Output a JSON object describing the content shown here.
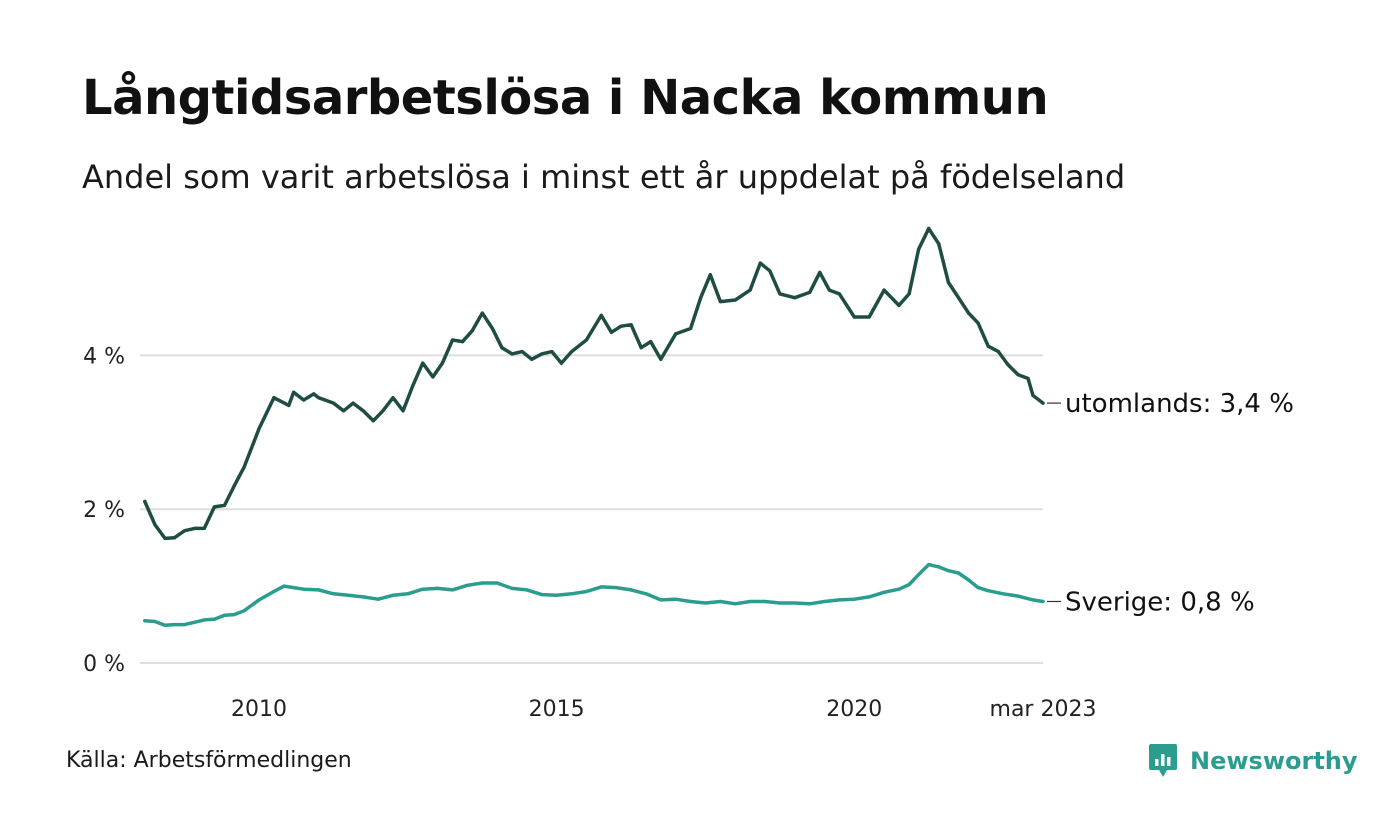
{
  "title": "Långtidsarbetslösa i Nacka kommun",
  "subtitle": "Andel som varit arbetslösa i minst ett år uppdelat på födelseland",
  "source": "Källa: Arbetsförmedlingen",
  "brand": {
    "name": "Newsworthy",
    "icon": "newsworthy-logo-icon",
    "color": "#2a9d8f"
  },
  "chart_data": {
    "type": "line",
    "xlim": [
      2008.0,
      2023.17
    ],
    "ylim": [
      0,
      5.8
    ],
    "y_ticks": [
      {
        "value": 0,
        "label": "0 %"
      },
      {
        "value": 2,
        "label": "2 %"
      },
      {
        "value": 4,
        "label": "4 %"
      }
    ],
    "x_ticks": [
      {
        "value": 2010.0,
        "label": "2010"
      },
      {
        "value": 2015.0,
        "label": "2015"
      },
      {
        "value": 2020.0,
        "label": "2020"
      },
      {
        "value": 2023.17,
        "label": "mar 2023"
      }
    ],
    "grid": true,
    "legend": "end-labels",
    "series": [
      {
        "name": "utomlands",
        "end_label": "utomlands: 3,4 %",
        "color": "#1f4d43",
        "points": [
          [
            2008.08,
            2.1
          ],
          [
            2008.25,
            1.8
          ],
          [
            2008.42,
            1.62
          ],
          [
            2008.58,
            1.63
          ],
          [
            2008.75,
            1.72
          ],
          [
            2008.92,
            1.75
          ],
          [
            2009.08,
            1.75
          ],
          [
            2009.25,
            2.03
          ],
          [
            2009.42,
            2.05
          ],
          [
            2009.58,
            2.3
          ],
          [
            2009.75,
            2.55
          ],
          [
            2010.0,
            3.05
          ],
          [
            2010.25,
            3.45
          ],
          [
            2010.5,
            3.35
          ],
          [
            2010.58,
            3.52
          ],
          [
            2010.75,
            3.42
          ],
          [
            2010.92,
            3.5
          ],
          [
            2011.0,
            3.45
          ],
          [
            2011.25,
            3.38
          ],
          [
            2011.42,
            3.28
          ],
          [
            2011.58,
            3.38
          ],
          [
            2011.75,
            3.28
          ],
          [
            2011.92,
            3.15
          ],
          [
            2012.08,
            3.28
          ],
          [
            2012.25,
            3.45
          ],
          [
            2012.42,
            3.28
          ],
          [
            2012.58,
            3.6
          ],
          [
            2012.75,
            3.9
          ],
          [
            2012.92,
            3.72
          ],
          [
            2013.08,
            3.9
          ],
          [
            2013.25,
            4.2
          ],
          [
            2013.42,
            4.18
          ],
          [
            2013.58,
            4.32
          ],
          [
            2013.75,
            4.55
          ],
          [
            2013.92,
            4.35
          ],
          [
            2014.08,
            4.1
          ],
          [
            2014.25,
            4.02
          ],
          [
            2014.42,
            4.05
          ],
          [
            2014.58,
            3.95
          ],
          [
            2014.75,
            4.02
          ],
          [
            2014.92,
            4.05
          ],
          [
            2015.08,
            3.9
          ],
          [
            2015.25,
            4.05
          ],
          [
            2015.5,
            4.2
          ],
          [
            2015.75,
            4.52
          ],
          [
            2015.92,
            4.3
          ],
          [
            2016.08,
            4.38
          ],
          [
            2016.25,
            4.4
          ],
          [
            2016.42,
            4.1
          ],
          [
            2016.58,
            4.18
          ],
          [
            2016.75,
            3.95
          ],
          [
            2017.0,
            4.28
          ],
          [
            2017.25,
            4.35
          ],
          [
            2017.42,
            4.75
          ],
          [
            2017.58,
            5.05
          ],
          [
            2017.75,
            4.7
          ],
          [
            2018.0,
            4.72
          ],
          [
            2018.25,
            4.85
          ],
          [
            2018.42,
            5.2
          ],
          [
            2018.58,
            5.1
          ],
          [
            2018.75,
            4.8
          ],
          [
            2019.0,
            4.75
          ],
          [
            2019.25,
            4.82
          ],
          [
            2019.42,
            5.08
          ],
          [
            2019.58,
            4.85
          ],
          [
            2019.75,
            4.8
          ],
          [
            2020.0,
            4.5
          ],
          [
            2020.25,
            4.5
          ],
          [
            2020.5,
            4.85
          ],
          [
            2020.75,
            4.65
          ],
          [
            2020.92,
            4.8
          ],
          [
            2021.08,
            5.38
          ],
          [
            2021.25,
            5.65
          ],
          [
            2021.42,
            5.45
          ],
          [
            2021.58,
            4.95
          ],
          [
            2021.75,
            4.75
          ],
          [
            2021.92,
            4.55
          ],
          [
            2022.08,
            4.42
          ],
          [
            2022.25,
            4.12
          ],
          [
            2022.42,
            4.05
          ],
          [
            2022.58,
            3.88
          ],
          [
            2022.75,
            3.75
          ],
          [
            2022.92,
            3.7
          ],
          [
            2023.0,
            3.48
          ],
          [
            2023.17,
            3.38
          ]
        ]
      },
      {
        "name": "Sverige",
        "end_label": "Sverige: 0,8 %",
        "color": "#2a9d8f",
        "points": [
          [
            2008.08,
            0.55
          ],
          [
            2008.25,
            0.54
          ],
          [
            2008.42,
            0.49
          ],
          [
            2008.58,
            0.5
          ],
          [
            2008.75,
            0.5
          ],
          [
            2008.92,
            0.53
          ],
          [
            2009.08,
            0.56
          ],
          [
            2009.25,
            0.57
          ],
          [
            2009.42,
            0.62
          ],
          [
            2009.58,
            0.63
          ],
          [
            2009.75,
            0.68
          ],
          [
            2010.0,
            0.82
          ],
          [
            2010.25,
            0.93
          ],
          [
            2010.42,
            1.0
          ],
          [
            2010.58,
            0.98
          ],
          [
            2010.75,
            0.96
          ],
          [
            2011.0,
            0.95
          ],
          [
            2011.25,
            0.9
          ],
          [
            2011.5,
            0.88
          ],
          [
            2011.75,
            0.86
          ],
          [
            2012.0,
            0.83
          ],
          [
            2012.25,
            0.88
          ],
          [
            2012.5,
            0.9
          ],
          [
            2012.75,
            0.96
          ],
          [
            2013.0,
            0.97
          ],
          [
            2013.25,
            0.95
          ],
          [
            2013.5,
            1.01
          ],
          [
            2013.75,
            1.04
          ],
          [
            2014.0,
            1.04
          ],
          [
            2014.25,
            0.97
          ],
          [
            2014.5,
            0.95
          ],
          [
            2014.75,
            0.89
          ],
          [
            2015.0,
            0.88
          ],
          [
            2015.25,
            0.9
          ],
          [
            2015.5,
            0.93
          ],
          [
            2015.75,
            0.99
          ],
          [
            2016.0,
            0.98
          ],
          [
            2016.25,
            0.95
          ],
          [
            2016.5,
            0.9
          ],
          [
            2016.75,
            0.82
          ],
          [
            2017.0,
            0.83
          ],
          [
            2017.25,
            0.8
          ],
          [
            2017.5,
            0.78
          ],
          [
            2017.75,
            0.8
          ],
          [
            2018.0,
            0.77
          ],
          [
            2018.25,
            0.8
          ],
          [
            2018.5,
            0.8
          ],
          [
            2018.75,
            0.78
          ],
          [
            2019.0,
            0.78
          ],
          [
            2019.25,
            0.77
          ],
          [
            2019.5,
            0.8
          ],
          [
            2019.75,
            0.82
          ],
          [
            2020.0,
            0.83
          ],
          [
            2020.25,
            0.86
          ],
          [
            2020.5,
            0.92
          ],
          [
            2020.75,
            0.96
          ],
          [
            2020.92,
            1.02
          ],
          [
            2021.08,
            1.15
          ],
          [
            2021.25,
            1.28
          ],
          [
            2021.42,
            1.25
          ],
          [
            2021.58,
            1.2
          ],
          [
            2021.75,
            1.17
          ],
          [
            2021.92,
            1.08
          ],
          [
            2022.08,
            0.98
          ],
          [
            2022.25,
            0.94
          ],
          [
            2022.5,
            0.9
          ],
          [
            2022.75,
            0.87
          ],
          [
            2023.0,
            0.82
          ],
          [
            2023.17,
            0.8
          ]
        ]
      }
    ]
  }
}
